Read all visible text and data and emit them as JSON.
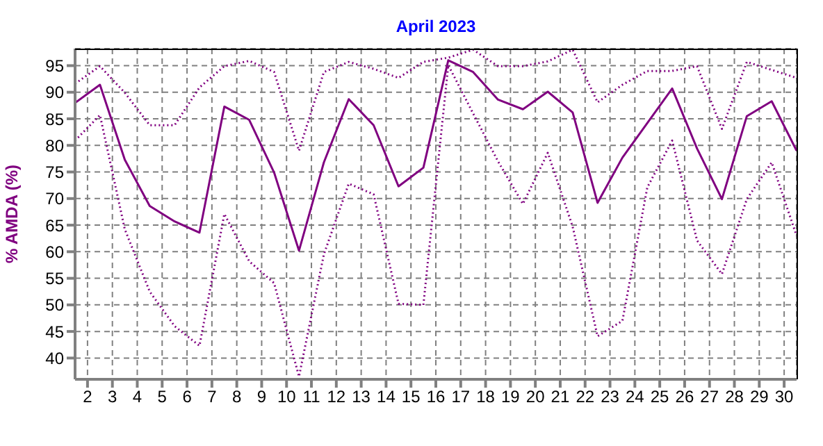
{
  "chart_data": {
    "type": "line",
    "title": "April 2023",
    "ylabel": "%  AMDA  (%)",
    "x": [
      1.5,
      2.5,
      3.5,
      4.5,
      5.5,
      6.5,
      7.5,
      8.5,
      9.5,
      10.5,
      11.5,
      12.5,
      13.5,
      14.5,
      15.5,
      16.5,
      17.5,
      18.5,
      19.5,
      20.5,
      21.5,
      22.5,
      23.5,
      24.5,
      25.5,
      26.5,
      27.5,
      28.5,
      29.5,
      30.5
    ],
    "series": [
      {
        "color": "#800080",
        "line_style": "dotted",
        "values": [
          91.6,
          94.9,
          89.9,
          83.8,
          83.8,
          90.9,
          94.9,
          95.9,
          93.8,
          79,
          93.8,
          95.7,
          94.4,
          92.7,
          95.7,
          96.5,
          98,
          94.9,
          94.9,
          95.8,
          98,
          88.1,
          91.4,
          94,
          94,
          94.9,
          83.1,
          95.7,
          94.2,
          92.7
        ]
      },
      {
        "color": "#800080",
        "line_style": "solid",
        "values": [
          88,
          91.4,
          77.3,
          68.6,
          65.7,
          63.6,
          87.3,
          84.8,
          74.9,
          60.2,
          76.8,
          88.7,
          83.8,
          72.3,
          75.8,
          96,
          93.8,
          88.6,
          86.8,
          90.1,
          86.2,
          69.2,
          77.7,
          84.2,
          90.7,
          79.4,
          69.9,
          85.5,
          88.3,
          79
        ]
      },
      {
        "color": "#800080",
        "line_style": "dotted",
        "values": [
          80.9,
          85.7,
          64.2,
          52.5,
          46,
          42.3,
          67.1,
          58.2,
          54.1,
          36.5,
          59.5,
          72.8,
          70.8,
          50.2,
          50,
          95.1,
          86,
          77,
          69,
          78.6,
          64.7,
          44.1,
          47,
          72.1,
          80.9,
          62.1,
          55.8,
          69.9,
          76.8,
          63
        ]
      }
    ],
    "xlim": [
      1.5,
      30.5
    ],
    "xticks": [
      2,
      3,
      4,
      5,
      6,
      7,
      8,
      9,
      10,
      11,
      12,
      13,
      14,
      15,
      16,
      17,
      18,
      19,
      20,
      21,
      22,
      23,
      24,
      25,
      26,
      27,
      28,
      29,
      30
    ],
    "ylim": [
      36,
      98.2
    ],
    "yticks": [
      40,
      45,
      50,
      55,
      60,
      65,
      70,
      75,
      80,
      85,
      90,
      95
    ],
    "grid": true,
    "marker": "none"
  }
}
